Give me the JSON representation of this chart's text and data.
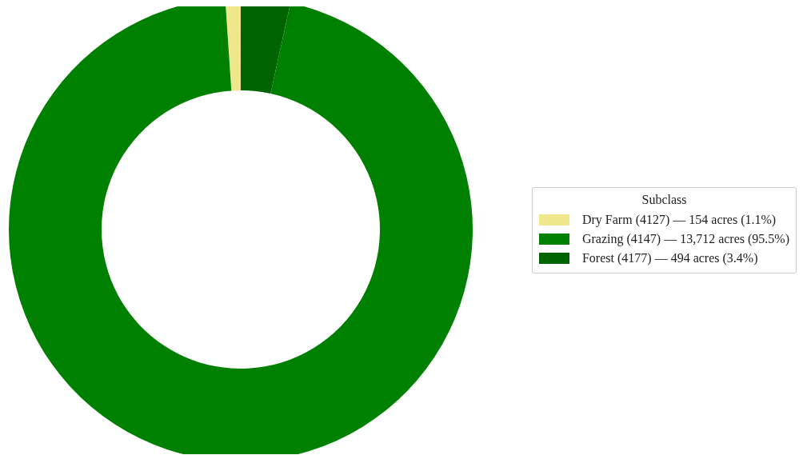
{
  "chart_data": {
    "type": "donut",
    "legend_title": "Subclass",
    "categories": [
      "Dry Farm (4127) — 154 acres (1.1%)",
      "Grazing (4147) — 13,712 acres (95.5%)",
      "Forest (4177) — 494 acres (3.4%)"
    ],
    "values": [
      154,
      13712,
      494
    ],
    "colors": [
      "#f0e68c",
      "#008000",
      "#006400"
    ],
    "legend": "right"
  }
}
